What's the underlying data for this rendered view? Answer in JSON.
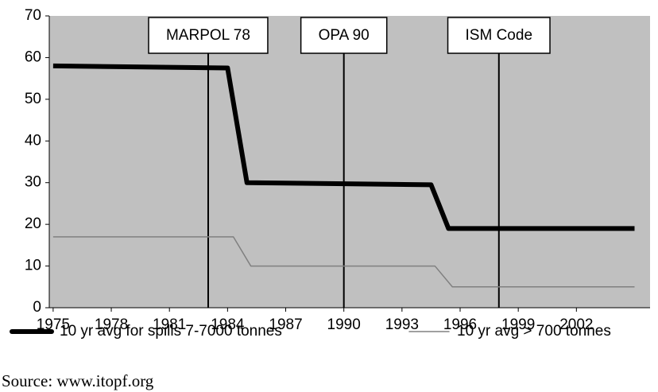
{
  "chart_data": {
    "type": "line",
    "xlim": [
      1974.8,
      2005.8
    ],
    "ylim": [
      0,
      70
    ],
    "xticks": [
      1975,
      1978,
      1981,
      1984,
      1987,
      1990,
      1993,
      1996,
      1999,
      2002
    ],
    "yticks": [
      0,
      10,
      20,
      30,
      40,
      50,
      60,
      70
    ],
    "background": "#c0c0c0",
    "series": [
      {
        "name": "10 yr avg for spills 7-7000 tonnes",
        "color": "#000000",
        "line_width": 6,
        "x": [
          1975,
          1984,
          1985,
          1994.5,
          1995.4,
          2005
        ],
        "values": [
          58,
          57.5,
          30,
          29.5,
          19,
          19
        ]
      },
      {
        "name": "10 yr avg > 700 tonnes",
        "color": "#808080",
        "line_width": 1.5,
        "x": [
          1975,
          1984.3,
          1985.2,
          1994.7,
          1995.6,
          2005
        ],
        "values": [
          17,
          17,
          10,
          10,
          5,
          5
        ]
      }
    ],
    "annotations": [
      {
        "x": 1983,
        "label": "MARPOL 78"
      },
      {
        "x": 1990,
        "label": "OPA 90"
      },
      {
        "x": 1998,
        "label": "ISM Code"
      }
    ],
    "source": "Source: www.itopf.org"
  }
}
